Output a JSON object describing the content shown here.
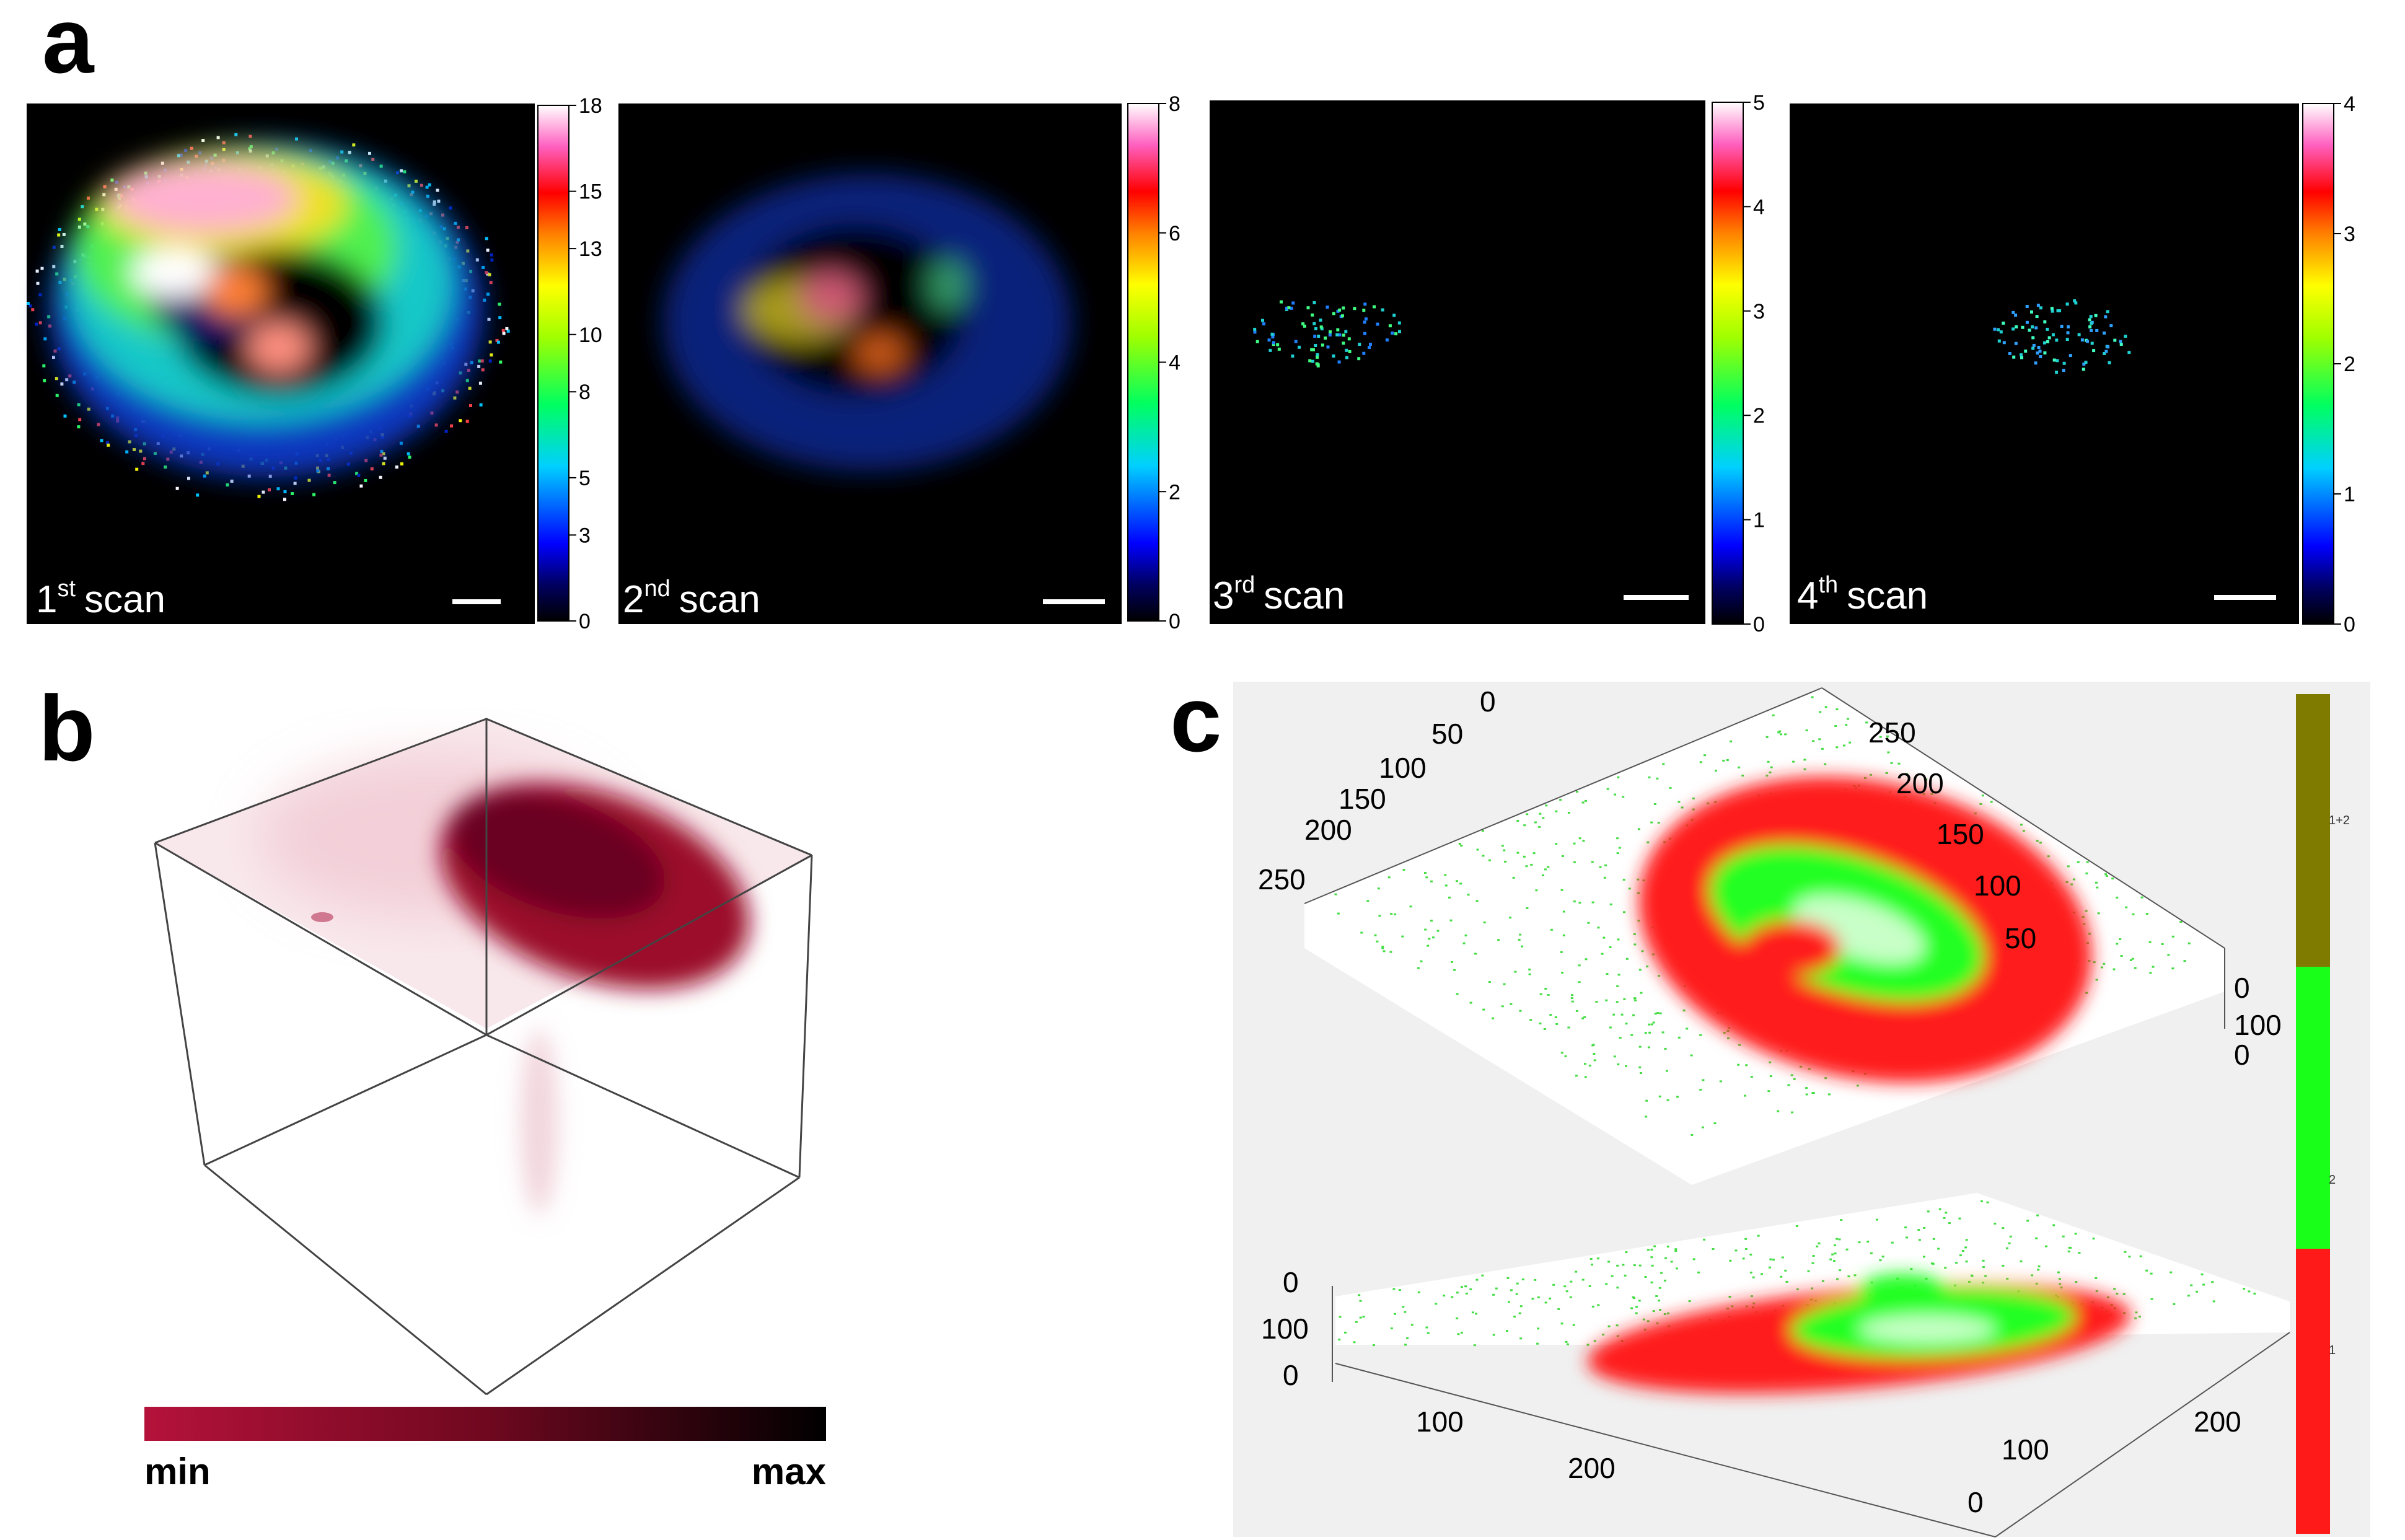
{
  "figure": {
    "panel_labels": {
      "a": "a",
      "b": "b",
      "c": "c"
    }
  },
  "panel_a": {
    "scans": [
      {
        "num": "1",
        "sup": "st",
        "word": "scan",
        "colorbar_ticks": [
          "18",
          "15",
          "13",
          "10",
          "8",
          "5",
          "3",
          "0"
        ],
        "vmax": 18
      },
      {
        "num": "2",
        "sup": "nd",
        "word": "scan",
        "colorbar_ticks": [
          "8",
          "6",
          "4",
          "2",
          "0"
        ],
        "vmax": 8
      },
      {
        "num": "3",
        "sup": "rd",
        "word": "scan",
        "colorbar_ticks": [
          "5",
          "4",
          "3",
          "2",
          "1",
          "0"
        ],
        "vmax": 5
      },
      {
        "num": "4",
        "sup": "th",
        "word": "scan",
        "colorbar_ticks": [
          "4",
          "3",
          "2",
          "1",
          "0"
        ],
        "vmax": 4
      }
    ],
    "colors": {
      "background": "#000000"
    }
  },
  "panel_b": {
    "colorbar": {
      "min_label": "min",
      "max_label": "max",
      "min_color": "#b5123a",
      "max_color": "#000000"
    },
    "volume_color": "#9b0b2c"
  },
  "panel_c": {
    "top_plot": {
      "axis1_ticks": [
        "250",
        "200",
        "150",
        "100",
        "50",
        "0"
      ],
      "axis2_ticks": [
        "250",
        "200",
        "150",
        "100",
        "50"
      ],
      "z_ticks": [
        "0",
        "100",
        "0"
      ]
    },
    "bottom_plot": {
      "z_ticks": [
        "0",
        "100",
        "0"
      ],
      "x_ticks": [
        "100",
        "200"
      ],
      "y_ticks": [
        "0",
        "100",
        "200"
      ]
    },
    "legend": {
      "entries": [
        {
          "label": "1+2",
          "color": "#7f7a00"
        },
        {
          "label": "2",
          "color": "#1aff1a"
        },
        {
          "label": "1",
          "color": "#ff1a1a"
        }
      ]
    },
    "colors": {
      "region1": "#ff1a1a",
      "region2": "#22ff22",
      "background": "#f0f0f0"
    }
  }
}
